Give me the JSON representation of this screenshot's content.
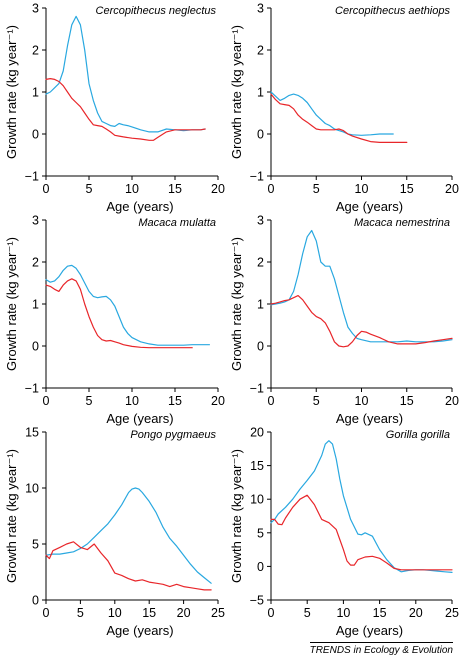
{
  "credit": "TRENDS in Ecology & Evolution",
  "colors": {
    "series_a": "#29a8e0",
    "series_b": "#e8262a",
    "axis": "#000000"
  },
  "chart_data": [
    {
      "type": "line",
      "title": "Cercopithecus neglectus",
      "xlabel": "Age (years)",
      "ylabel": "Growth rate (kg year⁻¹)",
      "xlim": [
        0,
        20
      ],
      "ylim": [
        -1,
        3
      ],
      "xticks": [
        0,
        5,
        10,
        15,
        20
      ],
      "yticks": [
        -1,
        0,
        1,
        2,
        3
      ],
      "series": [
        {
          "color": "#29a8e0",
          "x": [
            0,
            0.5,
            1,
            1.5,
            2,
            2.5,
            3,
            3.5,
            4,
            4.5,
            5,
            5.5,
            6,
            6.5,
            7,
            7.5,
            8,
            8.5,
            9,
            9.5,
            10,
            11,
            12,
            13,
            14,
            15,
            16,
            17,
            18,
            18.5
          ],
          "y": [
            0.95,
            1.0,
            1.1,
            1.2,
            1.5,
            2.1,
            2.6,
            2.8,
            2.6,
            2.0,
            1.2,
            0.8,
            0.5,
            0.3,
            0.25,
            0.2,
            0.18,
            0.25,
            0.22,
            0.2,
            0.17,
            0.1,
            0.05,
            0.05,
            0.12,
            0.1,
            0.08,
            0.1,
            0.1,
            0.12
          ]
        },
        {
          "color": "#e8262a",
          "x": [
            0,
            0.5,
            1,
            1.5,
            2,
            2.5,
            3,
            3.5,
            4,
            4.5,
            5,
            5.5,
            6,
            6.5,
            7,
            7.5,
            8,
            8.5,
            9,
            10,
            11,
            12,
            12.5,
            13,
            14,
            15,
            16,
            17,
            18,
            18.5
          ],
          "y": [
            1.3,
            1.32,
            1.3,
            1.25,
            1.15,
            1.0,
            0.85,
            0.75,
            0.65,
            0.5,
            0.35,
            0.22,
            0.2,
            0.18,
            0.12,
            0.05,
            -0.03,
            -0.05,
            -0.07,
            -0.1,
            -0.12,
            -0.15,
            -0.15,
            -0.08,
            0.05,
            0.1,
            0.1,
            0.1,
            0.1,
            0.12
          ]
        }
      ]
    },
    {
      "type": "line",
      "title": "Cercopithecus aethiops",
      "xlabel": "Age (years)",
      "ylabel": "Growth rate (kg year⁻¹)",
      "xlim": [
        0,
        20
      ],
      "ylim": [
        -1,
        3
      ],
      "xticks": [
        0,
        5,
        10,
        15,
        20
      ],
      "yticks": [
        -1,
        0,
        1,
        2,
        3
      ],
      "series": [
        {
          "color": "#29a8e0",
          "x": [
            0,
            0.5,
            1,
            1.5,
            2,
            2.5,
            3,
            3.5,
            4,
            4.5,
            5,
            5.5,
            6,
            6.5,
            7,
            7.5,
            8,
            8.5,
            9,
            10,
            11,
            12,
            13,
            13.5
          ],
          "y": [
            1.0,
            0.9,
            0.8,
            0.85,
            0.92,
            0.95,
            0.92,
            0.85,
            0.75,
            0.6,
            0.45,
            0.35,
            0.25,
            0.2,
            0.12,
            0.08,
            0.05,
            0.0,
            -0.02,
            -0.03,
            -0.02,
            0.0,
            0.0,
            0.0
          ]
        },
        {
          "color": "#e8262a",
          "x": [
            0,
            0.5,
            1,
            1.5,
            2,
            2.5,
            3,
            3.5,
            4,
            4.5,
            5,
            5.5,
            6,
            6.5,
            7,
            7.5,
            8,
            8.5,
            9,
            10,
            11,
            12,
            13,
            14,
            15
          ],
          "y": [
            0.95,
            0.82,
            0.72,
            0.7,
            0.68,
            0.6,
            0.45,
            0.35,
            0.28,
            0.2,
            0.12,
            0.1,
            0.1,
            0.1,
            0.1,
            0.12,
            0.08,
            0.0,
            -0.05,
            -0.12,
            -0.18,
            -0.2,
            -0.2,
            -0.2,
            -0.2
          ]
        }
      ]
    },
    {
      "type": "line",
      "title": "Macaca mulatta",
      "xlabel": "Age (years)",
      "ylabel": "Growth rate (kg year⁻¹)",
      "xlim": [
        0,
        20
      ],
      "ylim": [
        -1,
        3
      ],
      "xticks": [
        0,
        5,
        10,
        15,
        20
      ],
      "yticks": [
        -1,
        0,
        1,
        2,
        3
      ],
      "series": [
        {
          "color": "#29a8e0",
          "x": [
            0,
            0.5,
            1,
            1.5,
            2,
            2.5,
            3,
            3.5,
            4,
            4.5,
            5,
            5.5,
            6,
            6.5,
            7,
            7.5,
            8,
            8.5,
            9,
            9.5,
            10,
            11,
            12,
            13,
            14,
            15,
            16,
            17,
            18,
            19
          ],
          "y": [
            1.58,
            1.52,
            1.55,
            1.65,
            1.8,
            1.9,
            1.92,
            1.85,
            1.7,
            1.5,
            1.3,
            1.18,
            1.15,
            1.17,
            1.18,
            1.1,
            0.95,
            0.7,
            0.45,
            0.3,
            0.2,
            0.1,
            0.05,
            0.02,
            0.02,
            0.02,
            0.02,
            0.03,
            0.03,
            0.03
          ]
        },
        {
          "color": "#e8262a",
          "x": [
            0,
            0.5,
            1,
            1.5,
            2,
            2.5,
            3,
            3.5,
            4,
            4.5,
            5,
            5.5,
            6,
            6.5,
            7,
            7.5,
            8,
            8.5,
            9,
            10,
            11,
            12,
            13,
            14,
            15,
            16,
            17
          ],
          "y": [
            1.45,
            1.42,
            1.35,
            1.3,
            1.45,
            1.55,
            1.6,
            1.55,
            1.35,
            1.0,
            0.7,
            0.45,
            0.25,
            0.15,
            0.12,
            0.13,
            0.1,
            0.07,
            0.03,
            -0.01,
            -0.03,
            -0.04,
            -0.04,
            -0.04,
            -0.04,
            -0.04,
            -0.04
          ]
        }
      ]
    },
    {
      "type": "line",
      "title": "Macaca nemestrina",
      "xlabel": "Age (years)",
      "ylabel": "Growth rate (kg year⁻¹)",
      "xlim": [
        0,
        20
      ],
      "ylim": [
        -1,
        3
      ],
      "xticks": [
        0,
        5,
        10,
        15,
        20
      ],
      "yticks": [
        -1,
        0,
        1,
        2,
        3
      ],
      "series": [
        {
          "color": "#29a8e0",
          "x": [
            0,
            0.5,
            1,
            1.5,
            2,
            2.5,
            3,
            3.5,
            4,
            4.5,
            5,
            5.5,
            6,
            6.5,
            7,
            7.5,
            8,
            8.5,
            9,
            9.5,
            10,
            11,
            12,
            13,
            14,
            15,
            16,
            17,
            18,
            19,
            20
          ],
          "y": [
            0.98,
            1.0,
            1.02,
            1.05,
            1.1,
            1.3,
            1.7,
            2.2,
            2.6,
            2.75,
            2.5,
            2.0,
            1.9,
            1.9,
            1.6,
            1.2,
            0.8,
            0.45,
            0.3,
            0.18,
            0.15,
            0.1,
            0.1,
            0.1,
            0.1,
            0.12,
            0.1,
            0.1,
            0.1,
            0.12,
            0.15
          ]
        },
        {
          "color": "#e8262a",
          "x": [
            0,
            0.5,
            1,
            1.5,
            2,
            2.5,
            3,
            3.5,
            4,
            4.5,
            5,
            5.5,
            6,
            6.5,
            7,
            7.5,
            8,
            8.5,
            9,
            9.5,
            10,
            10.5,
            11,
            12,
            13,
            14,
            15,
            16,
            17,
            18,
            19,
            20
          ],
          "y": [
            1.0,
            1.02,
            1.05,
            1.08,
            1.1,
            1.15,
            1.2,
            1.1,
            0.95,
            0.8,
            0.7,
            0.65,
            0.55,
            0.35,
            0.1,
            0.0,
            -0.02,
            0.0,
            0.1,
            0.25,
            0.35,
            0.33,
            0.28,
            0.2,
            0.1,
            0.05,
            0.05,
            0.05,
            0.08,
            0.12,
            0.15,
            0.18
          ]
        }
      ]
    },
    {
      "type": "line",
      "title": "Pongo pygmaeus",
      "xlabel": "Age (years)",
      "ylabel": "Growth rate (kg year⁻¹)",
      "xlim": [
        0,
        25
      ],
      "ylim": [
        0,
        15
      ],
      "xticks": [
        0,
        5,
        10,
        15,
        20,
        25
      ],
      "yticks": [
        0,
        5,
        10,
        15
      ],
      "series": [
        {
          "color": "#29a8e0",
          "x": [
            0,
            1,
            2,
            3,
            4,
            5,
            6,
            7,
            8,
            9,
            10,
            11,
            12,
            12.5,
            13,
            13.5,
            14,
            15,
            16,
            17,
            18,
            19,
            20,
            21,
            22,
            23,
            24
          ],
          "y": [
            4.0,
            4.1,
            4.1,
            4.2,
            4.3,
            4.6,
            5.0,
            5.6,
            6.2,
            6.8,
            7.6,
            8.5,
            9.6,
            9.9,
            10.0,
            9.9,
            9.6,
            8.8,
            7.8,
            6.5,
            5.5,
            4.8,
            4.0,
            3.2,
            2.5,
            2.0,
            1.5
          ]
        },
        {
          "color": "#e8262a",
          "x": [
            0,
            0.5,
            1,
            2,
            3,
            4,
            5,
            6,
            7,
            8,
            9,
            10,
            11,
            12,
            13,
            14,
            15,
            16,
            17,
            18,
            19,
            20,
            21,
            22,
            23,
            24
          ],
          "y": [
            4.0,
            3.7,
            4.4,
            4.7,
            5.0,
            5.2,
            4.7,
            4.5,
            5.0,
            4.2,
            3.5,
            2.4,
            2.2,
            1.9,
            1.7,
            1.8,
            1.6,
            1.5,
            1.4,
            1.2,
            1.4,
            1.2,
            1.1,
            1.0,
            0.9,
            0.9
          ]
        }
      ]
    },
    {
      "type": "line",
      "title": "Gorilla gorilla",
      "xlabel": "Age (years)",
      "ylabel": "Growth rate (kg year⁻¹)",
      "xlim": [
        0,
        25
      ],
      "ylim": [
        -5,
        20
      ],
      "xticks": [
        0,
        5,
        10,
        15,
        20,
        25
      ],
      "yticks": [
        -5,
        0,
        5,
        10,
        15,
        20
      ],
      "series": [
        {
          "color": "#29a8e0",
          "x": [
            0,
            0.5,
            1,
            2,
            3,
            4,
            5,
            6,
            7,
            7.5,
            8,
            8.5,
            9,
            9.5,
            10,
            11,
            12,
            12.5,
            13,
            14,
            15,
            16,
            17,
            18,
            19,
            20,
            21,
            22,
            23,
            24,
            25
          ],
          "y": [
            6.5,
            7.0,
            7.8,
            8.8,
            10.0,
            11.5,
            12.8,
            14.2,
            16.5,
            18.2,
            18.7,
            18.2,
            16.0,
            13.0,
            10.5,
            7.0,
            4.8,
            4.7,
            5.0,
            4.5,
            2.5,
            1.0,
            -0.2,
            -0.8,
            -0.6,
            -0.5,
            -0.5,
            -0.6,
            -0.7,
            -0.8,
            -0.9
          ]
        },
        {
          "color": "#e8262a",
          "x": [
            0,
            0.5,
            1,
            1.5,
            2,
            3,
            4,
            5,
            6,
            7,
            8,
            9,
            9.5,
            10,
            10.5,
            11,
            11.5,
            12,
            13,
            14,
            15,
            16,
            17,
            18,
            20,
            22,
            25
          ],
          "y": [
            7.0,
            7.0,
            6.3,
            6.2,
            7.2,
            8.8,
            10.0,
            10.6,
            9.2,
            7.0,
            6.5,
            5.5,
            4.0,
            2.5,
            0.8,
            0.2,
            0.2,
            1.0,
            1.4,
            1.5,
            1.2,
            0.5,
            -0.3,
            -0.5,
            -0.5,
            -0.5,
            -0.5
          ]
        }
      ]
    }
  ]
}
